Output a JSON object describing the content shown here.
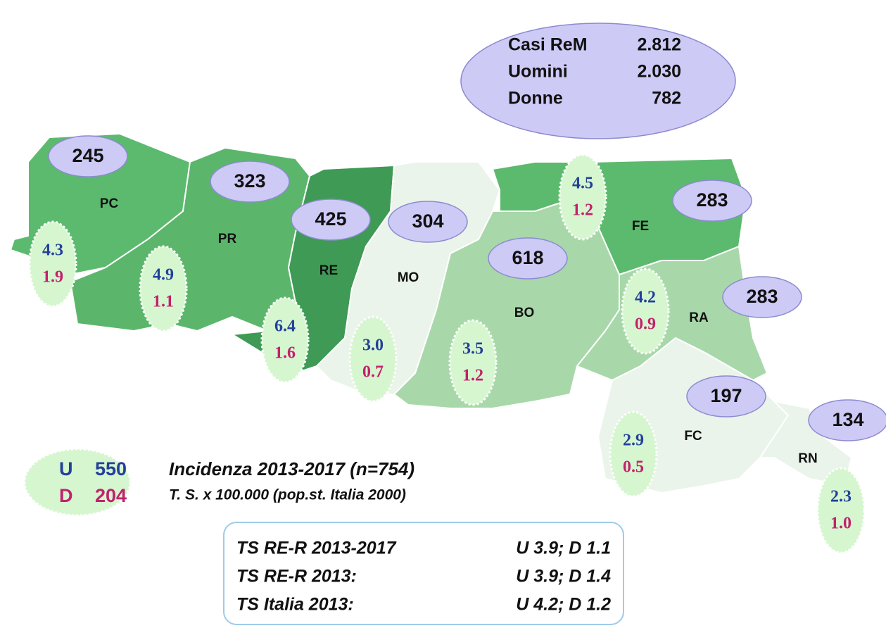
{
  "summary": [
    {
      "label": "Casi ReM",
      "value": "2.812"
    },
    {
      "label": "Uomini",
      "value": "2.030"
    },
    {
      "label": "Donne",
      "value": "782"
    }
  ],
  "provinces": [
    {
      "code": "PC",
      "cases": "245",
      "u": "4.3",
      "d": "1.9"
    },
    {
      "code": "PR",
      "cases": "323",
      "u": "4.9",
      "d": "1.1"
    },
    {
      "code": "RE",
      "cases": "425",
      "u": "6.4",
      "d": "1.6"
    },
    {
      "code": "MO",
      "cases": "304",
      "u": "3.0",
      "d": "0.7"
    },
    {
      "code": "BO",
      "cases": "618",
      "u": "3.5",
      "d": "1.2"
    },
    {
      "code": "FE",
      "cases": "283",
      "u": "4.5",
      "d": "1.2"
    },
    {
      "code": "RA",
      "cases": "283",
      "u": "4.2",
      "d": "0.9"
    },
    {
      "code": "FC",
      "cases": "197",
      "u": "2.9",
      "d": "0.5"
    },
    {
      "code": "RN",
      "cases": "134",
      "u": "2.3",
      "d": "1.0"
    }
  ],
  "legend": {
    "u_label": "U",
    "u_value": "550",
    "d_label": "D",
    "d_value": "204"
  },
  "caption": {
    "title": "Incidenza 2013-2017 (n=754)",
    "subtitle": "T. S. x 100.000 (pop.st. Italia 2000)"
  },
  "rates_box": [
    {
      "label": "TS RE-R 2013-2017",
      "value": "U 3.9; D 1.1"
    },
    {
      "label": "TS RE-R 2013:",
      "value": "U 3.9; D 1.4"
    },
    {
      "label": "TS Italia 2013:",
      "value": "U 4.2; D 1.2"
    }
  ]
}
